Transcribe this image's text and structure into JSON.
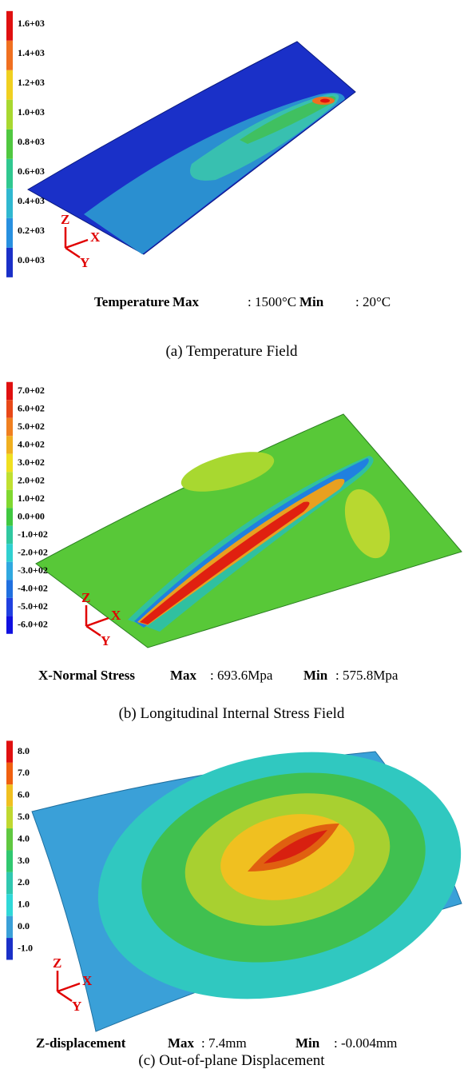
{
  "panels": [
    {
      "legend": [
        "1.6+03",
        "1.4+03",
        "1.2+03",
        "1.0+03",
        "0.8+03",
        "0.6+03",
        "0.4+03",
        "0.2+03",
        "0.0+03"
      ],
      "axes": [
        "Z",
        "X",
        "Y"
      ],
      "summary": {
        "quantity": "Temperature",
        "max_key": "Max",
        "max_value": ": 1500°C",
        "min_key": "Min",
        "min_value": ": 20°C"
      },
      "caption": "(a) Temperature Field"
    },
    {
      "legend": [
        "7.0+02",
        "6.0+02",
        "5.0+02",
        "4.0+02",
        "3.0+02",
        "2.0+02",
        "1.0+02",
        "0.0+00",
        "-1.0+02",
        "-2.0+02",
        "-3.0+02",
        "-4.0+02",
        "-5.0+02",
        "-6.0+02"
      ],
      "axes": [
        "Z",
        "X",
        "Y"
      ],
      "summary": {
        "quantity": "X-Normal Stress",
        "max_key": "Max",
        "max_value": ": 693.6Mpa",
        "min_key": "Min",
        "min_value": ": 575.8Mpa"
      },
      "caption": "(b) Longitudinal Internal Stress Field"
    },
    {
      "legend": [
        "8.0",
        "7.0",
        "6.0",
        "5.0",
        "4.0",
        "3.0",
        "2.0",
        "1.0",
        "0.0",
        "-1.0"
      ],
      "axes": [
        "Z",
        "X",
        "Y"
      ],
      "summary": {
        "quantity": "Z-displacement",
        "max_key": "Max",
        "max_value": ": 7.4mm",
        "min_key": "Min",
        "min_value": ": -0.004mm"
      },
      "caption": "(c) Out-of-plane Displacement"
    }
  ]
}
